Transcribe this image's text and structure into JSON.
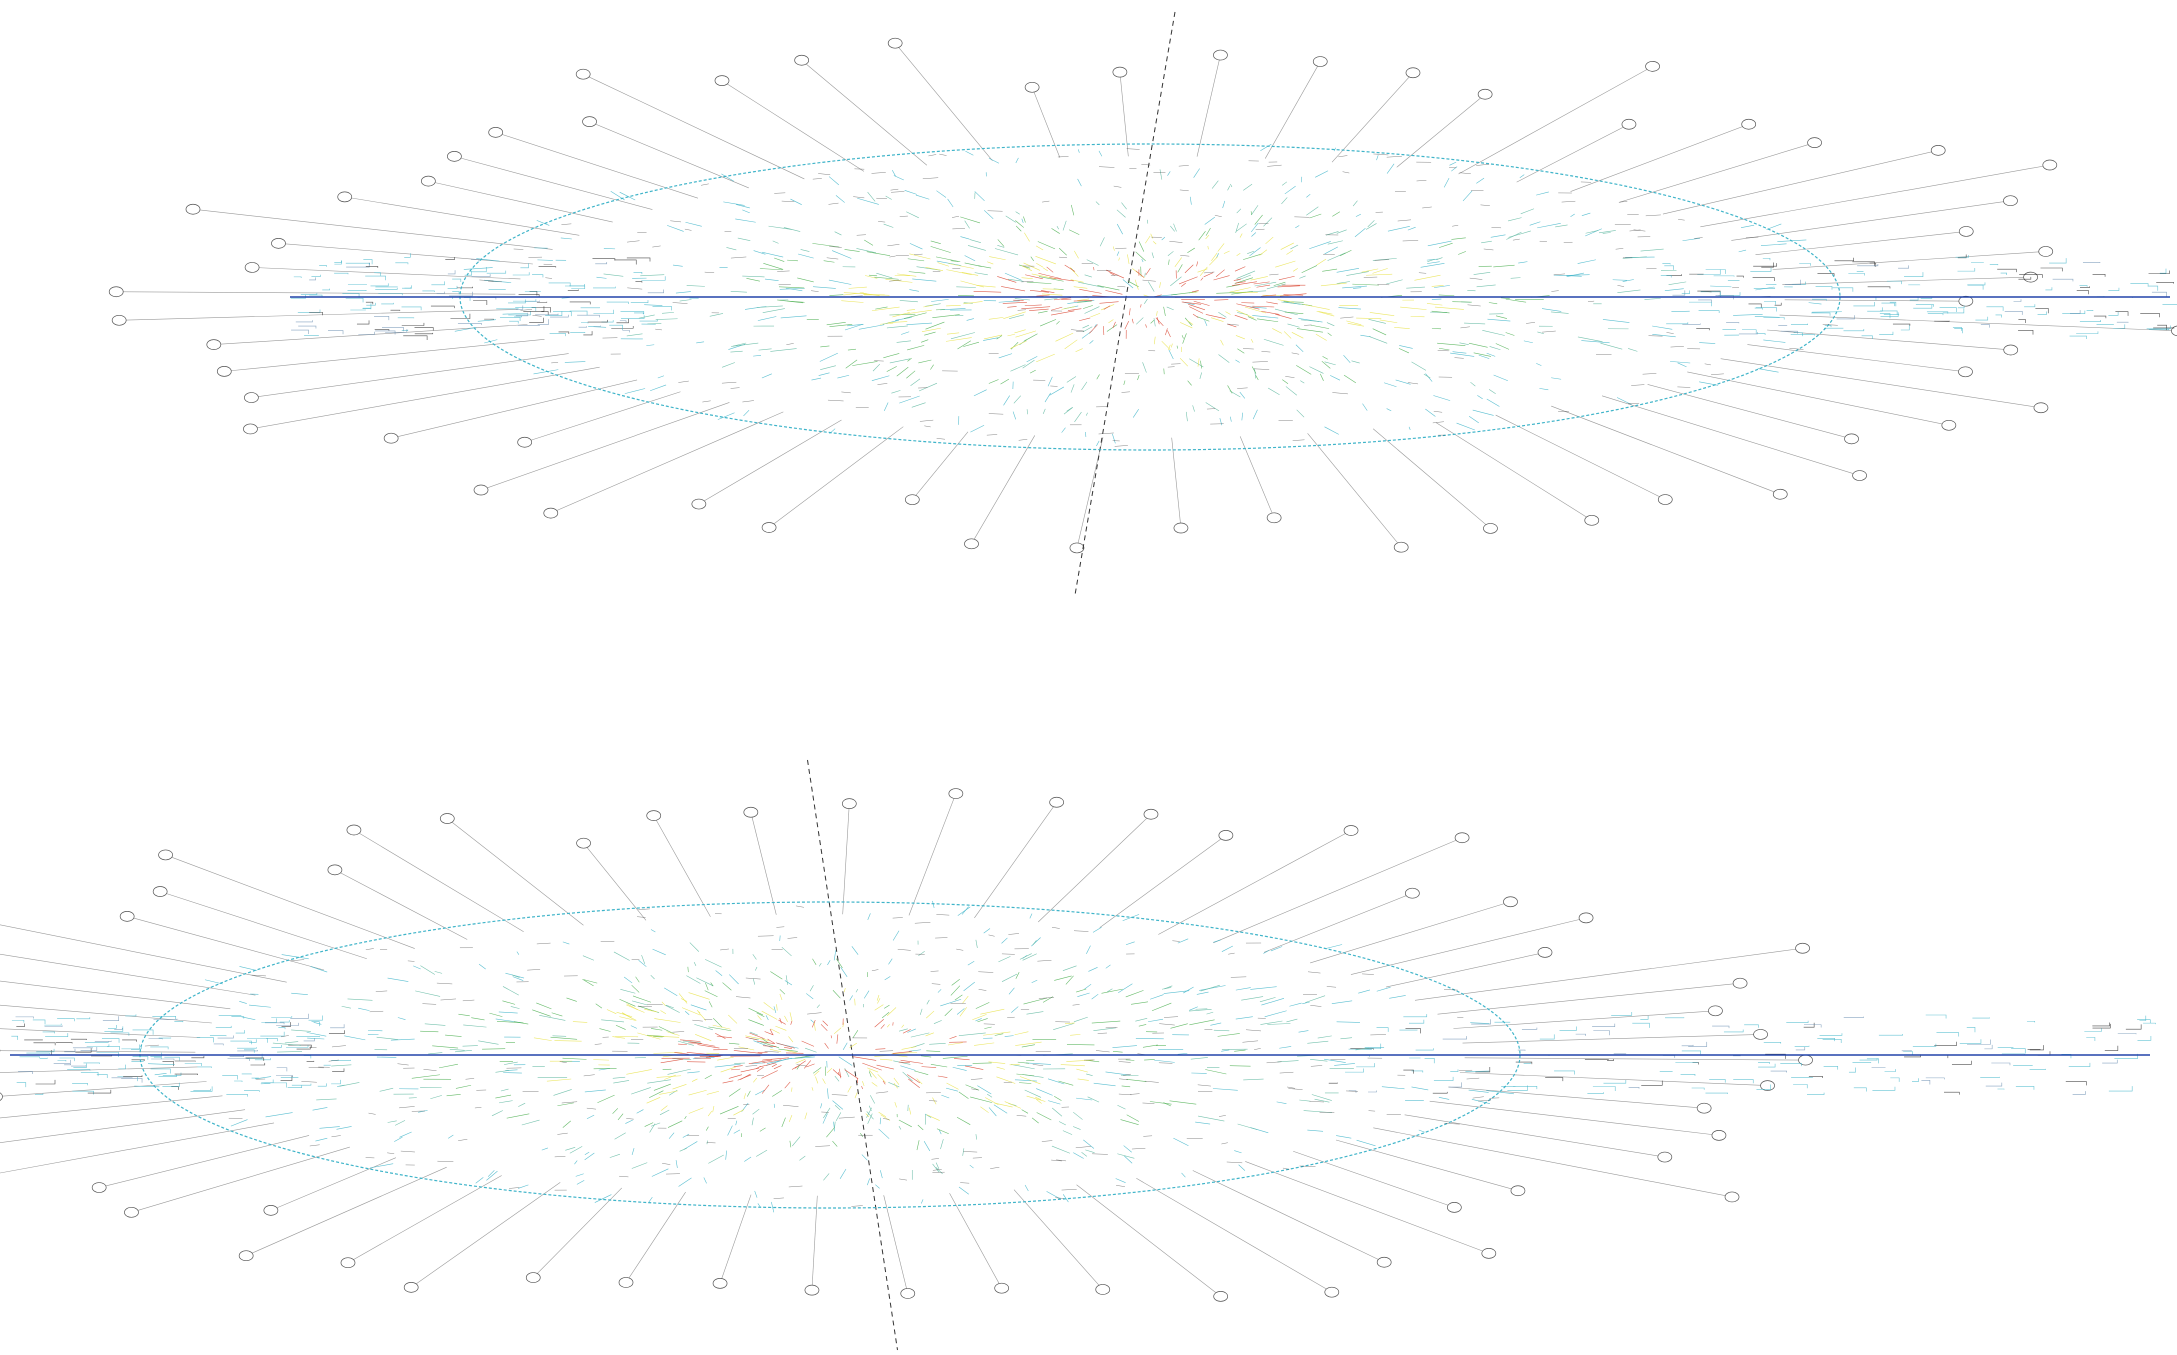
{
  "figure": {
    "background": "#ffffff",
    "panels": [
      {
        "id": "top",
        "callout_count": 58,
        "callout_text": "",
        "has_dashed_axis": true
      },
      {
        "id": "bottom",
        "callout_count": 60,
        "callout_text": "",
        "has_dashed_axis": true
      }
    ],
    "palette": {
      "outer": "#3fb4c9",
      "mid": "#4caf50",
      "inner": "#e8e24a",
      "core": "#d9432f",
      "axis": "#2244aa",
      "ink": "#222222",
      "leader": "#9a9a9a"
    }
  }
}
